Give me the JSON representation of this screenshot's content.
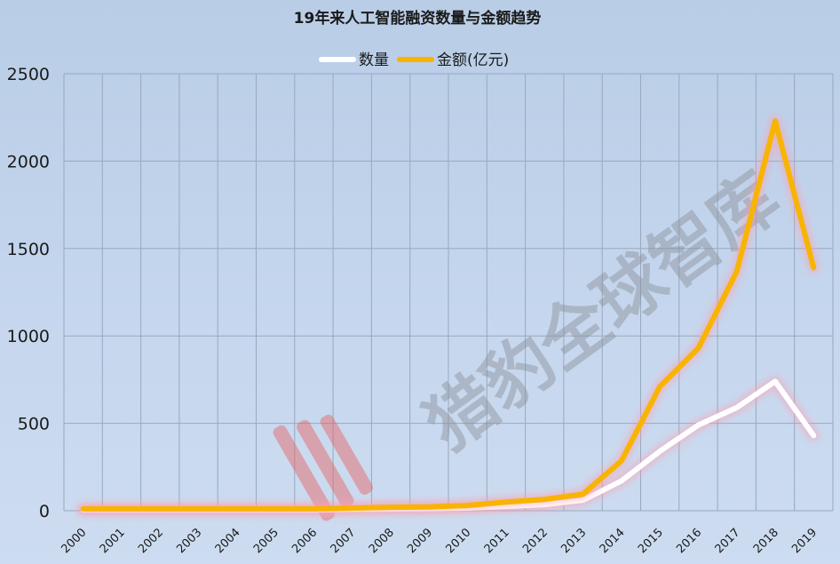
{
  "colors": {
    "quantity_line": "#ffffff",
    "amount_line": "#f8b400",
    "glow": "#ff9fb0",
    "watermark_logo": "#e8605f"
  },
  "watermark": {
    "text": "猎豹全球智库"
  },
  "chart_data": {
    "type": "line",
    "title": "19年来人工智能融资数量与金额趋势",
    "xlabel": "",
    "ylabel": "",
    "ylim": [
      0,
      2500
    ],
    "yticks": [
      "0",
      "500",
      "1000",
      "1500",
      "2000",
      "2500"
    ],
    "categories": [
      "2000",
      "2001",
      "2002",
      "2003",
      "2004",
      "2005",
      "2006",
      "2007",
      "2008",
      "2009",
      "2010",
      "2011",
      "2012",
      "2013",
      "2014",
      "2015",
      "2016",
      "2017",
      "2018",
      "2019"
    ],
    "grid": true,
    "legend_position": "top-center",
    "series": [
      {
        "name": "数量",
        "color_key": "quantity_line",
        "values": [
          5,
          5,
          5,
          5,
          5,
          5,
          5,
          8,
          10,
          12,
          15,
          25,
          35,
          60,
          170,
          340,
          490,
          590,
          740,
          430
        ]
      },
      {
        "name": "金额(亿元)",
        "color_key": "amount_line",
        "values": [
          10,
          10,
          10,
          10,
          10,
          10,
          10,
          15,
          20,
          22,
          30,
          50,
          65,
          95,
          285,
          710,
          930,
          1370,
          2230,
          1390
        ]
      }
    ]
  }
}
